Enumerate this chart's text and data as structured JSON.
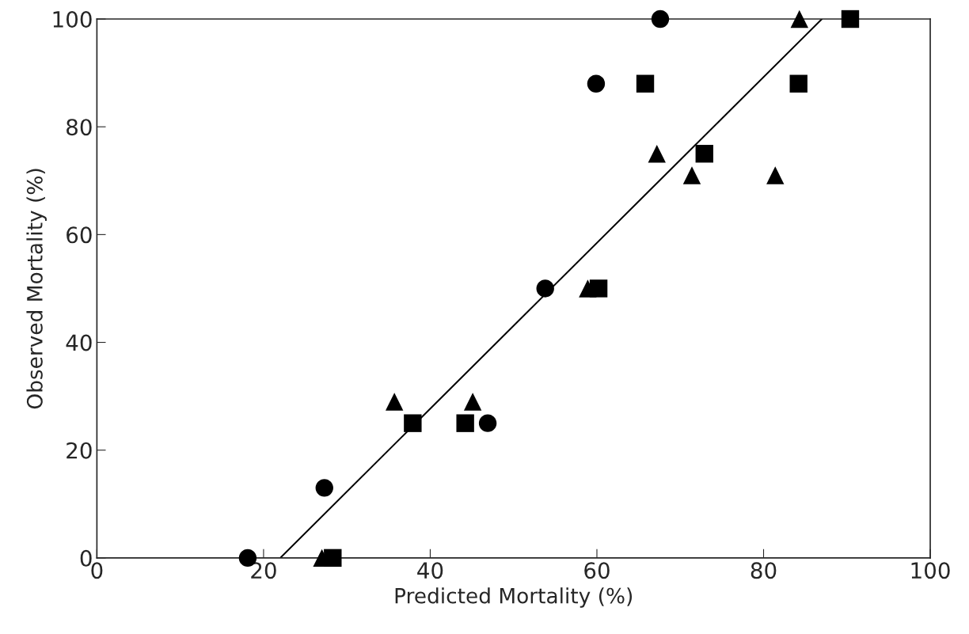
{
  "chart_data": {
    "type": "scatter",
    "xlabel": "Predicted Mortality (%)",
    "ylabel": "Observed Mortality (%)",
    "xlim": [
      0,
      100
    ],
    "ylim": [
      0,
      100
    ],
    "xticks": [
      0,
      20,
      40,
      60,
      80,
      100
    ],
    "yticks": [
      0,
      20,
      40,
      60,
      80,
      100
    ],
    "grid": false,
    "series": [
      {
        "marker": "circle",
        "color": "#000000",
        "x": [
          18.1,
          27.3,
          46.9,
          53.8,
          59.9,
          67.6
        ],
        "values": [
          0,
          13,
          25,
          50,
          88,
          100
        ]
      },
      {
        "marker": "square",
        "color": "#000000",
        "x": [
          28.3,
          37.9,
          44.2,
          60.2,
          65.8,
          72.9,
          84.2,
          90.4
        ],
        "values": [
          0,
          25,
          25,
          50,
          88,
          75,
          88,
          100
        ]
      },
      {
        "marker": "triangle",
        "color": "#000000",
        "x": [
          27,
          35.7,
          45.1,
          58.9,
          67.2,
          71.4,
          81.4,
          84.3
        ],
        "values": [
          0,
          29,
          29,
          50,
          75,
          71,
          71,
          100
        ]
      },
      {
        "type": "line",
        "line_style": "solid",
        "marker": "none",
        "color": "#000000",
        "x": [
          22,
          87
        ],
        "values": [
          0,
          100
        ]
      }
    ]
  }
}
